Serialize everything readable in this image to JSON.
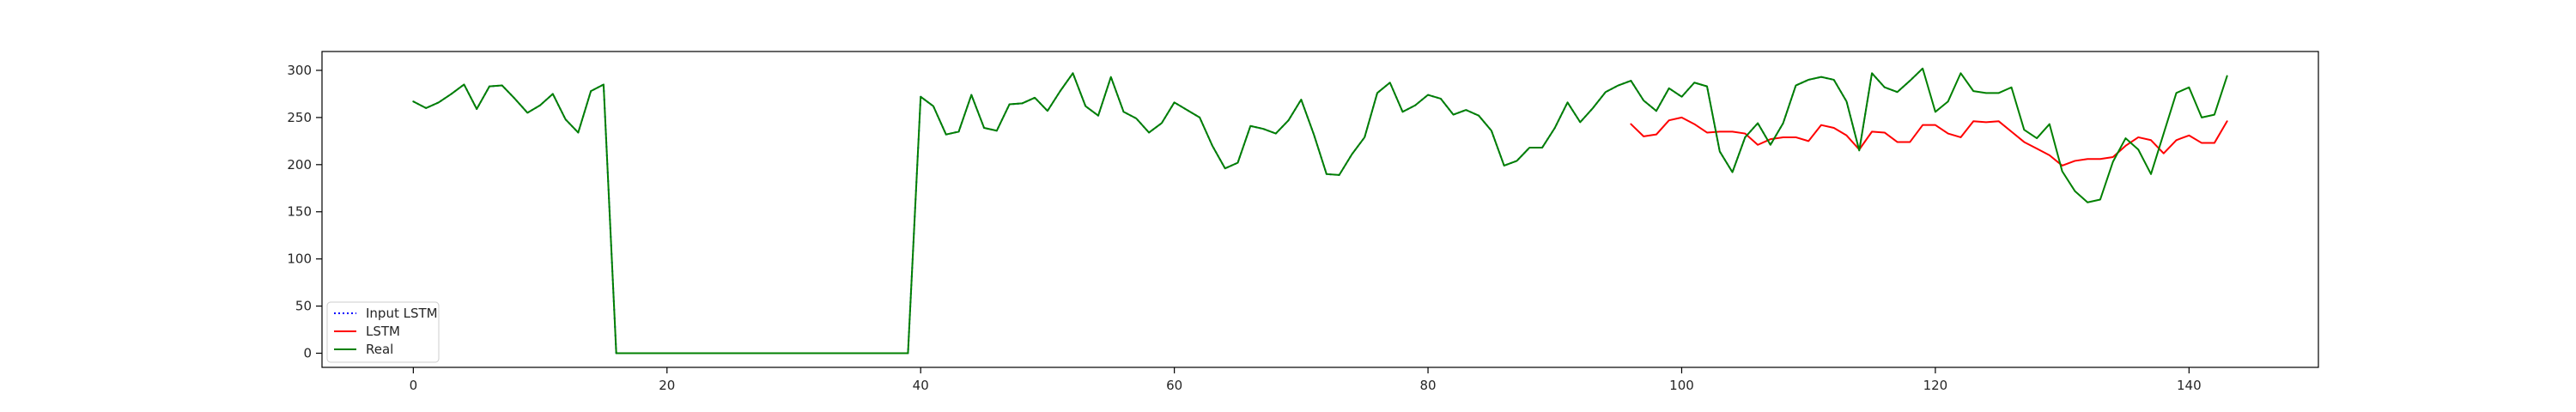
{
  "chart_data": {
    "type": "line",
    "title": "",
    "xlabel": "",
    "ylabel": "",
    "xlim": [
      -7.2,
      150.2
    ],
    "ylim": [
      -15,
      320
    ],
    "xticks": [
      0,
      20,
      40,
      60,
      80,
      100,
      120,
      140
    ],
    "yticks": [
      0,
      50,
      100,
      150,
      200,
      250,
      300
    ],
    "grid": false,
    "legend_position": "lower-left",
    "series": [
      {
        "name": "Input LSTM",
        "color": "#0000ff",
        "style": "dotted",
        "x_start": 0,
        "values": [
          267,
          260,
          266,
          275,
          285,
          259,
          283,
          284,
          270,
          255,
          263,
          275,
          248,
          234,
          278,
          285,
          0,
          0,
          0,
          0,
          0,
          0,
          0,
          0,
          0,
          0,
          0,
          0,
          0,
          0,
          0,
          0,
          0,
          0,
          0,
          0,
          0,
          0,
          0,
          0,
          272,
          262,
          232,
          235,
          274,
          239,
          236,
          264,
          265,
          271,
          257,
          278,
          297,
          262,
          252,
          293,
          256,
          249,
          234,
          244,
          266,
          258,
          250,
          220,
          196,
          202,
          241,
          238,
          233,
          247,
          269,
          232,
          190,
          189,
          211,
          229,
          276,
          287,
          256,
          263,
          274,
          270,
          253,
          258,
          252,
          236,
          199,
          204,
          218,
          218,
          239,
          266,
          245,
          260,
          277,
          284,
          289,
          268,
          257,
          281,
          272,
          287,
          283,
          214,
          192,
          229,
          244,
          221,
          244,
          284,
          290,
          293,
          290,
          267,
          215,
          297,
          282,
          277,
          289,
          302
        ]
      },
      {
        "name": "LSTM",
        "color": "#ff0000",
        "style": "solid",
        "x_start": 96,
        "values": [
          243,
          230,
          232,
          247,
          250,
          243,
          234,
          235,
          235,
          233,
          221,
          227,
          229,
          229,
          225,
          242,
          239,
          231,
          216,
          235,
          234,
          224,
          224,
          242,
          242,
          233,
          229,
          246,
          245,
          246,
          235,
          224,
          217,
          210,
          199,
          204,
          206,
          206,
          208,
          220,
          229,
          226,
          212,
          226,
          231,
          223,
          223,
          246
        ]
      },
      {
        "name": "Real",
        "color": "#008000",
        "style": "solid",
        "x_start": 0,
        "values": [
          267,
          260,
          266,
          275,
          285,
          259,
          283,
          284,
          270,
          255,
          263,
          275,
          248,
          234,
          278,
          285,
          0,
          0,
          0,
          0,
          0,
          0,
          0,
          0,
          0,
          0,
          0,
          0,
          0,
          0,
          0,
          0,
          0,
          0,
          0,
          0,
          0,
          0,
          0,
          0,
          272,
          262,
          232,
          235,
          274,
          239,
          236,
          264,
          265,
          271,
          257,
          278,
          297,
          262,
          252,
          293,
          256,
          249,
          234,
          244,
          266,
          258,
          250,
          220,
          196,
          202,
          241,
          238,
          233,
          247,
          269,
          232,
          190,
          189,
          211,
          229,
          276,
          287,
          256,
          263,
          274,
          270,
          253,
          258,
          252,
          236,
          199,
          204,
          218,
          218,
          239,
          266,
          245,
          260,
          277,
          284,
          289,
          268,
          257,
          281,
          272,
          287,
          283,
          214,
          192,
          229,
          244,
          221,
          244,
          284,
          290,
          293,
          290,
          267,
          215,
          297,
          282,
          277,
          289,
          302,
          256,
          267,
          297,
          278,
          276,
          276,
          282,
          237,
          228,
          243,
          193,
          172,
          160,
          163,
          203,
          228,
          216,
          190,
          233,
          276,
          282,
          250,
          253,
          294
        ]
      }
    ]
  }
}
